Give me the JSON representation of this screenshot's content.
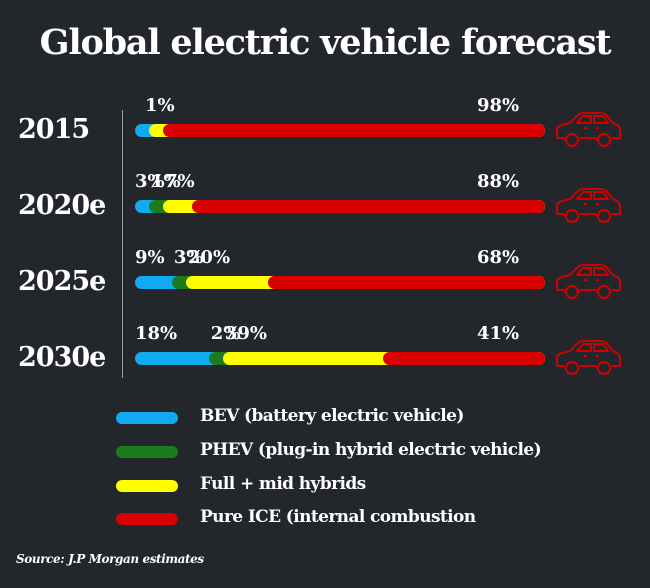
{
  "chart_data": {
    "type": "bar",
    "orientation": "horizontal-stacked",
    "title": "Global electric vehicle forecast",
    "categories": [
      "2015",
      "2020e",
      "2025e",
      "2030e"
    ],
    "series": [
      {
        "name": "BEV (battery electric vehicle)",
        "color": "#10aaf0",
        "values": [
          null,
          3,
          9,
          18
        ]
      },
      {
        "name": "PHEV (plug-in hybrid electric vehicle)",
        "color": "#1d7a1d",
        "values": [
          null,
          1,
          3,
          2
        ]
      },
      {
        "name": "Full + mid hybrids",
        "color": "#ffff00",
        "values": [
          1,
          7,
          20,
          39
        ]
      },
      {
        "name": "Pure ICE  (internal combustion",
        "color": "#d90000",
        "values": [
          98,
          88,
          68,
          41
        ]
      }
    ],
    "data_labels": [
      [
        "",
        "",
        "1%",
        "98%"
      ],
      [
        "3%",
        "1%",
        "7%",
        "88%"
      ],
      [
        "9%",
        "3%",
        "20%",
        "68%"
      ],
      [
        "18%",
        "2%",
        "39%",
        "41%"
      ]
    ],
    "xlim": [
      0,
      100
    ],
    "legend_position": "bottom",
    "source": "Source: J.P Morgan estimates"
  },
  "row_icon": "car-icon",
  "colors": {
    "background": "#23272b",
    "car": "#d00000"
  }
}
